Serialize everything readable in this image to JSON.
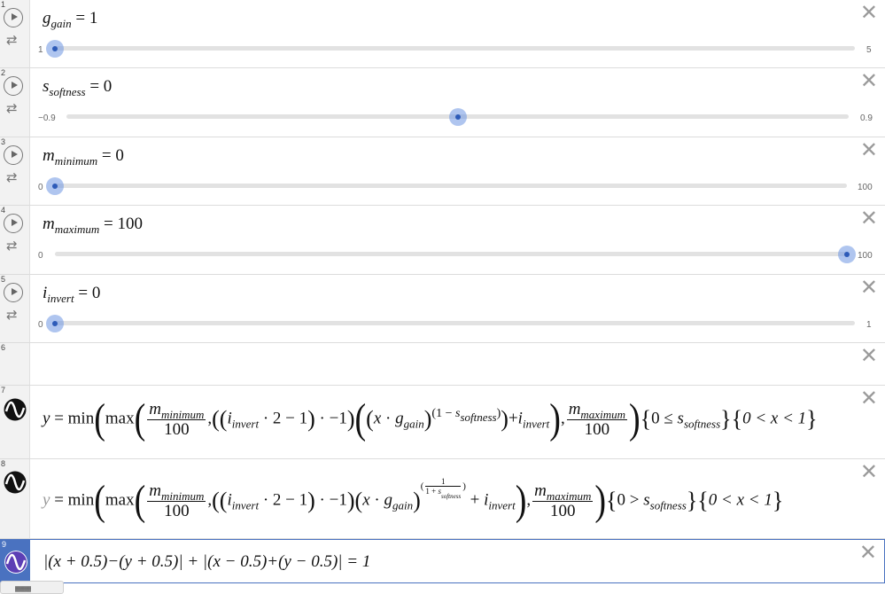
{
  "rows": [
    {
      "num": "1",
      "var": "g",
      "sub": "gain",
      "value": "1",
      "min": "1",
      "max": "5",
      "fraction": 0.0
    },
    {
      "num": "2",
      "var": "s",
      "sub": "softness",
      "value": "0",
      "min": "−0.9",
      "max": "0.9",
      "fraction": 0.5
    },
    {
      "num": "3",
      "var": "m",
      "sub": "minimum",
      "value": "0",
      "min": "0",
      "max": "100",
      "fraction": 0.0
    },
    {
      "num": "4",
      "var": "m",
      "sub": "maximum",
      "value": "100",
      "min": "0",
      "max": "100",
      "fraction": 1.0
    },
    {
      "num": "5",
      "var": "i",
      "sub": "invert",
      "value": "0",
      "min": "0",
      "max": "1",
      "fraction": 0.0
    }
  ],
  "row6": {
    "num": "6"
  },
  "row7": {
    "num": "7"
  },
  "row8": {
    "num": "8"
  },
  "row9": {
    "num": "9"
  },
  "expr": {
    "y": "y",
    "eq": "=",
    "min": "min",
    "max": "max",
    "m": "m",
    "minimum": "minimum",
    "maximum": "maximum",
    "hundred": "100",
    "i": "i",
    "invert": "invert",
    "two": "2",
    "minus_one": "−1",
    "x": "x",
    "g": "g",
    "gain": "gain",
    "one": "1",
    "s": "s",
    "softness": "softness",
    "zero": "0",
    "le": "≤",
    "gt": ">",
    "lt": "<",
    "one_plus": "1 + ",
    "cond_x": "0 < x < 1"
  },
  "row9_expr": "|(x + 0.5)−(y + 0.5)| + |(x − 0.5)+(y − 0.5)| = 1",
  "colors": {
    "icon_black": "#111111",
    "icon_purple": "#5c3fb5",
    "row9_bg": "#4a72c0"
  },
  "icons": {
    "play": "play-icon",
    "loop": "loop-icon",
    "close": "close-icon",
    "graph": "function-graph-icon",
    "keyboard": "keyboard-icon"
  },
  "keyboard_label": "▦▦▦"
}
